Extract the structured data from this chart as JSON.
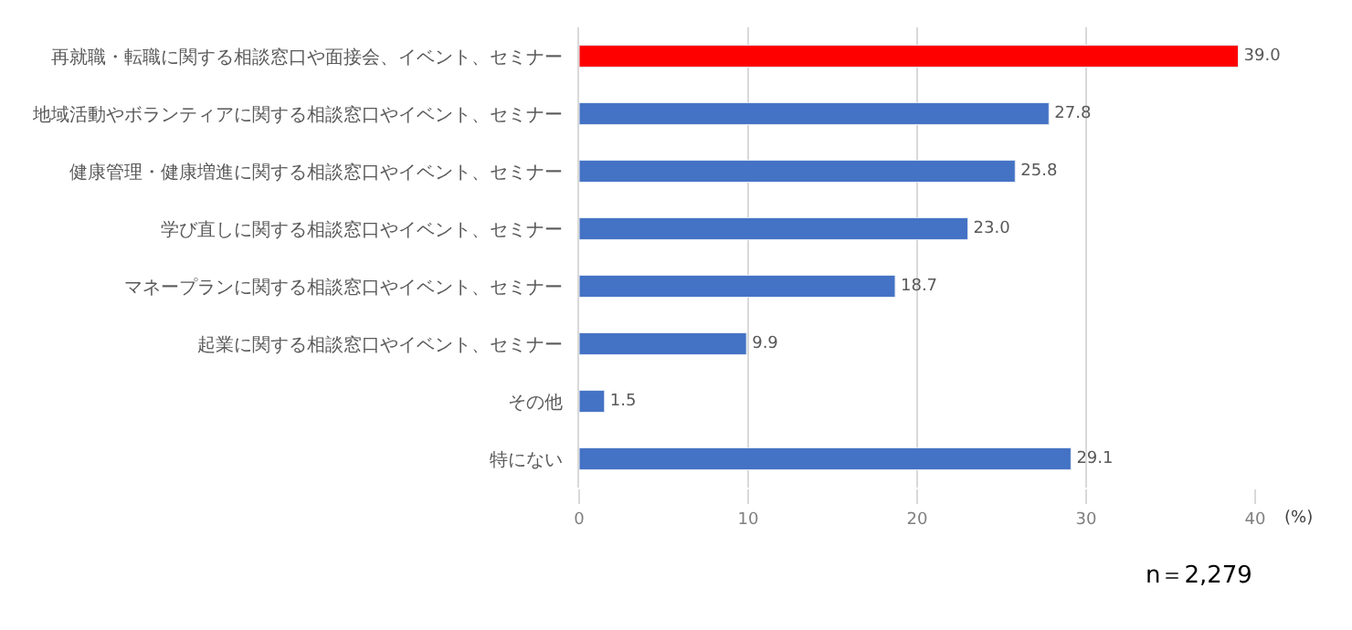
{
  "chart_data": {
    "type": "bar",
    "orientation": "horizontal",
    "categories": [
      "再就職・転職に関する相談窓口や面接会、イベント、セミナー",
      "地域活動やボランティアに関する相談窓口やイベント、セミナー",
      "健康管理・健康増進に関する相談窓口やイベント、セミナー",
      "学び直しに関する相談窓口やイベント、セミナー",
      "マネープランに関する相談窓口やイベント、セミナー",
      "起業に関する相談窓口やイベント、セミナー",
      "その他",
      "特にない"
    ],
    "values": [
      39.0,
      27.8,
      25.8,
      23.0,
      18.7,
      9.9,
      1.5,
      29.1
    ],
    "colors": [
      "#ff0000",
      "#4472c4",
      "#4472c4",
      "#4472c4",
      "#4472c4",
      "#4472c4",
      "#4472c4",
      "#4472c4"
    ],
    "xlim": [
      0,
      40
    ],
    "xticks": [
      0,
      10,
      20,
      30,
      40
    ],
    "xlabel": "(%)",
    "value_labels": [
      "39.0",
      "27.8",
      "25.8",
      "23.0",
      "18.7",
      "9.9",
      "1.5",
      "29.1"
    ],
    "grid": "x",
    "legend": false,
    "annotations": [
      "n＝2,279"
    ]
  }
}
